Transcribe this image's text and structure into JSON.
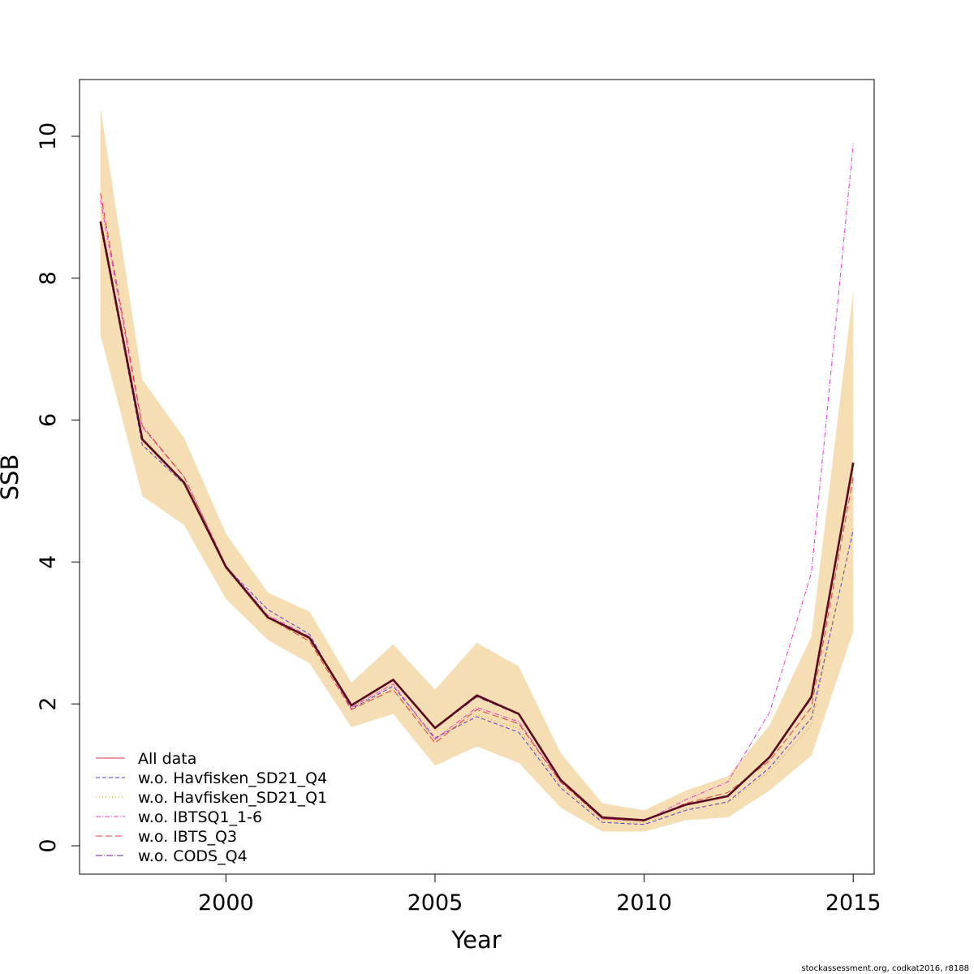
{
  "chart_data": {
    "type": "line",
    "title": "",
    "xlabel": "Year",
    "ylabel": "SSB",
    "xlim": [
      1996.5,
      2015.5
    ],
    "ylim": [
      -0.4,
      10.8
    ],
    "x_ticks": [
      2000,
      2005,
      2010,
      2015
    ],
    "y_ticks": [
      0,
      2,
      4,
      6,
      8,
      10
    ],
    "grid": false,
    "legend_position": "bottom-left",
    "x": [
      1997,
      1998,
      1999,
      2000,
      2001,
      2002,
      2003,
      2004,
      2005,
      2006,
      2007,
      2008,
      2009,
      2010,
      2011,
      2012,
      2013,
      2014,
      2015
    ],
    "confidence_band": {
      "color": "#f5deb3",
      "lower": [
        7.2,
        4.93,
        4.52,
        3.48,
        2.9,
        2.57,
        1.67,
        1.86,
        1.13,
        1.4,
        1.17,
        0.54,
        0.2,
        0.2,
        0.36,
        0.4,
        0.78,
        1.27,
        3.02
      ],
      "upper": [
        10.4,
        6.57,
        5.75,
        4.4,
        3.57,
        3.3,
        2.3,
        2.84,
        2.2,
        2.86,
        2.53,
        1.31,
        0.6,
        0.5,
        0.78,
        0.98,
        1.7,
        2.95,
        7.82
      ]
    },
    "main_line": {
      "values": [
        8.8,
        5.73,
        5.12,
        3.93,
        3.22,
        2.93,
        1.98,
        2.34,
        1.66,
        2.12,
        1.86,
        0.93,
        0.4,
        0.36,
        0.58,
        0.7,
        1.25,
        2.1,
        5.4
      ],
      "color": "#5a0a1e"
    },
    "series": [
      {
        "name": "All data",
        "color": "#d23c3c",
        "dash": "",
        "values": [
          8.8,
          5.73,
          5.12,
          3.93,
          3.22,
          2.93,
          1.98,
          2.34,
          1.66,
          2.12,
          1.86,
          0.93,
          0.4,
          0.36,
          0.58,
          0.7,
          1.25,
          2.1,
          5.4
        ]
      },
      {
        "name": "w.o. Havfisken_SD21_Q4",
        "color": "#5a3ed2",
        "dash": "5,3",
        "values": [
          8.75,
          5.65,
          5.1,
          3.93,
          3.33,
          2.98,
          1.93,
          2.25,
          1.52,
          1.82,
          1.6,
          0.82,
          0.33,
          0.3,
          0.5,
          0.62,
          1.1,
          1.8,
          4.45
        ]
      },
      {
        "name": "w.o. Havfisken_SD21_Q1",
        "color": "#c8a020",
        "dash": "1,3",
        "values": [
          8.7,
          5.7,
          5.08,
          3.9,
          3.18,
          2.9,
          1.95,
          2.2,
          1.5,
          1.85,
          1.65,
          0.85,
          0.35,
          0.32,
          0.52,
          0.6,
          1.05,
          1.7,
          4.5
        ]
      },
      {
        "name": "w.o. IBTSQ1_1-6",
        "color": "#e040d0",
        "dash": "6,2,1,2",
        "values": [
          9.1,
          5.9,
          5.2,
          3.95,
          3.25,
          2.95,
          1.95,
          2.28,
          1.5,
          1.95,
          1.75,
          0.9,
          0.38,
          0.35,
          0.65,
          0.9,
          1.88,
          3.85,
          9.9
        ]
      },
      {
        "name": "w.o. IBTS_Q3",
        "color": "#e03c3c",
        "dash": "8,4",
        "values": [
          9.2,
          5.92,
          5.2,
          3.95,
          3.22,
          2.88,
          1.92,
          2.2,
          1.45,
          1.92,
          1.72,
          0.9,
          0.38,
          0.35,
          0.6,
          0.75,
          1.2,
          1.95,
          5.2
        ]
      },
      {
        "name": "w.o. CODS_Q4",
        "color": "#6a1e8a",
        "dash": "8,2,1,2",
        "values": [
          8.8,
          5.72,
          5.12,
          3.93,
          3.22,
          2.93,
          1.98,
          2.33,
          1.65,
          2.1,
          1.85,
          0.93,
          0.4,
          0.36,
          0.58,
          0.7,
          1.24,
          2.08,
          5.38
        ]
      }
    ]
  },
  "footer": {
    "credit": "stockassessment.org, codkat2016, r8188"
  }
}
